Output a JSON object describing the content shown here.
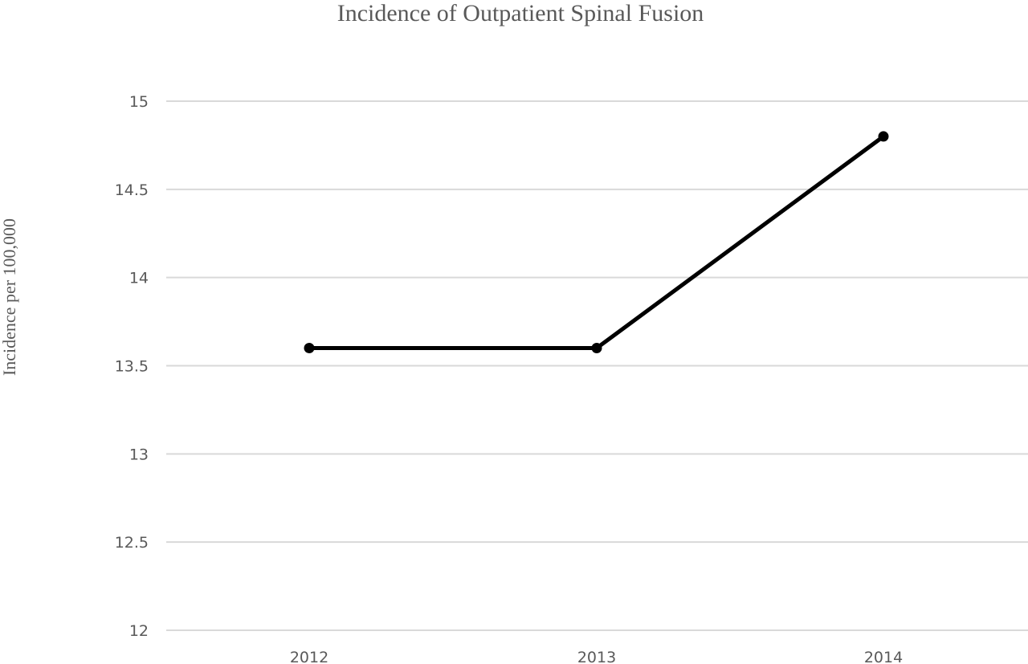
{
  "chart_data": {
    "type": "line",
    "title": "Incidence of Outpatient Spinal Fusion",
    "xlabel": "",
    "ylabel": "Incidence per 100,000",
    "categories": [
      "2012",
      "2013",
      "2014"
    ],
    "series": [
      {
        "values": [
          13.6,
          13.6,
          14.8
        ]
      }
    ],
    "ylim": [
      12,
      15
    ],
    "yticks": [
      "12",
      "12.5",
      "13",
      "13.5",
      "14",
      "14.5",
      "15"
    ],
    "grid": true,
    "line_color": "#000000"
  }
}
